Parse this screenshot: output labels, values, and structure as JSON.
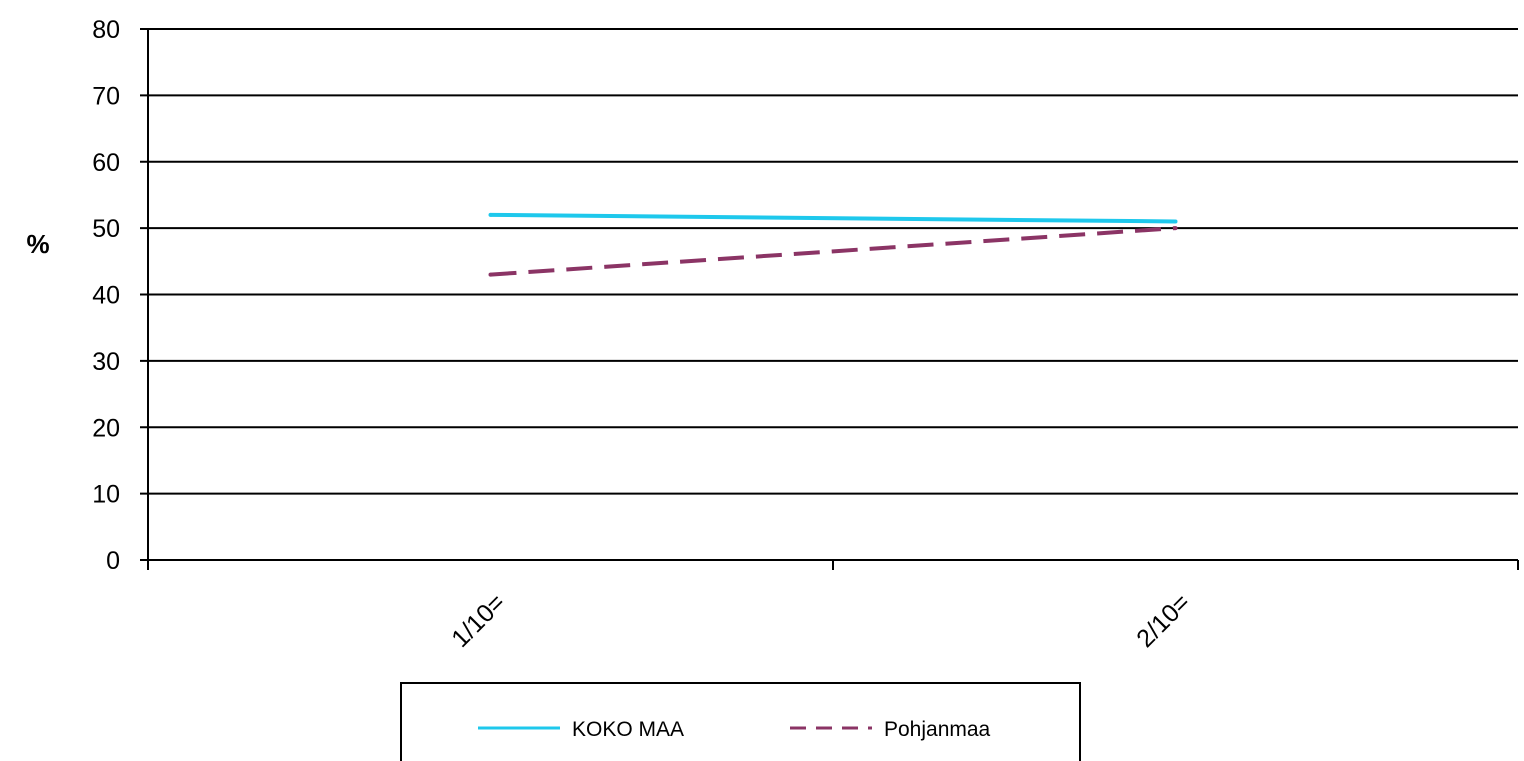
{
  "chart_data": {
    "type": "line",
    "title": "",
    "xlabel": "",
    "ylabel": "%",
    "categories": [
      "1/10=",
      "2/10="
    ],
    "ylim": [
      0,
      80
    ],
    "y_ticks": [
      0,
      10,
      20,
      30,
      40,
      50,
      60,
      70,
      80
    ],
    "grid": true,
    "legend_position": "bottom",
    "series": [
      {
        "name": "KOKO MAA",
        "values": [
          52,
          51
        ],
        "color": "#1ec8ec",
        "dash": "solid"
      },
      {
        "name": "Pohjanmaa",
        "values": [
          43,
          50
        ],
        "color": "#8b3465",
        "dash": "dashed"
      }
    ]
  }
}
